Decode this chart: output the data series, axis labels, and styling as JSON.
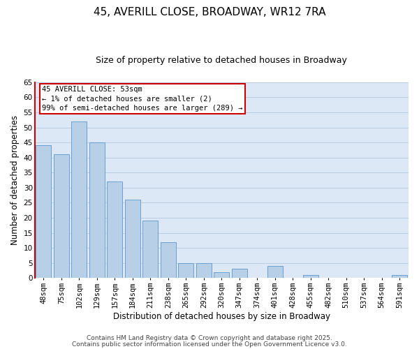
{
  "title": "45, AVERILL CLOSE, BROADWAY, WR12 7RA",
  "subtitle": "Size of property relative to detached houses in Broadway",
  "xlabel": "Distribution of detached houses by size in Broadway",
  "ylabel": "Number of detached properties",
  "bar_color": "#b8cfe8",
  "bar_edge_color": "#6a9fd0",
  "categories": [
    "48sqm",
    "75sqm",
    "102sqm",
    "129sqm",
    "157sqm",
    "184sqm",
    "211sqm",
    "238sqm",
    "265sqm",
    "292sqm",
    "320sqm",
    "347sqm",
    "374sqm",
    "401sqm",
    "428sqm",
    "455sqm",
    "482sqm",
    "510sqm",
    "537sqm",
    "564sqm",
    "591sqm"
  ],
  "values": [
    44,
    41,
    52,
    45,
    32,
    26,
    19,
    12,
    5,
    5,
    2,
    3,
    0,
    4,
    0,
    1,
    0,
    0,
    0,
    0,
    1
  ],
  "ylim": [
    0,
    65
  ],
  "yticks": [
    0,
    5,
    10,
    15,
    20,
    25,
    30,
    35,
    40,
    45,
    50,
    55,
    60,
    65
  ],
  "annotation_text_line1": "45 AVERILL CLOSE: 53sqm",
  "annotation_text_line2": "← 1% of detached houses are smaller (2)",
  "annotation_text_line3": "99% of semi-detached houses are larger (289) →",
  "footer_line1": "Contains HM Land Registry data © Crown copyright and database right 2025.",
  "footer_line2": "Contains public sector information licensed under the Open Government Licence v3.0.",
  "bg_color": "#ffffff",
  "plot_bg_color": "#dce8f5",
  "grid_color": "#b8cce0",
  "red_color": "#cc0000",
  "title_fontsize": 11,
  "subtitle_fontsize": 9,
  "label_fontsize": 8.5,
  "tick_fontsize": 7.5,
  "annot_fontsize": 7.5,
  "footer_fontsize": 6.5
}
